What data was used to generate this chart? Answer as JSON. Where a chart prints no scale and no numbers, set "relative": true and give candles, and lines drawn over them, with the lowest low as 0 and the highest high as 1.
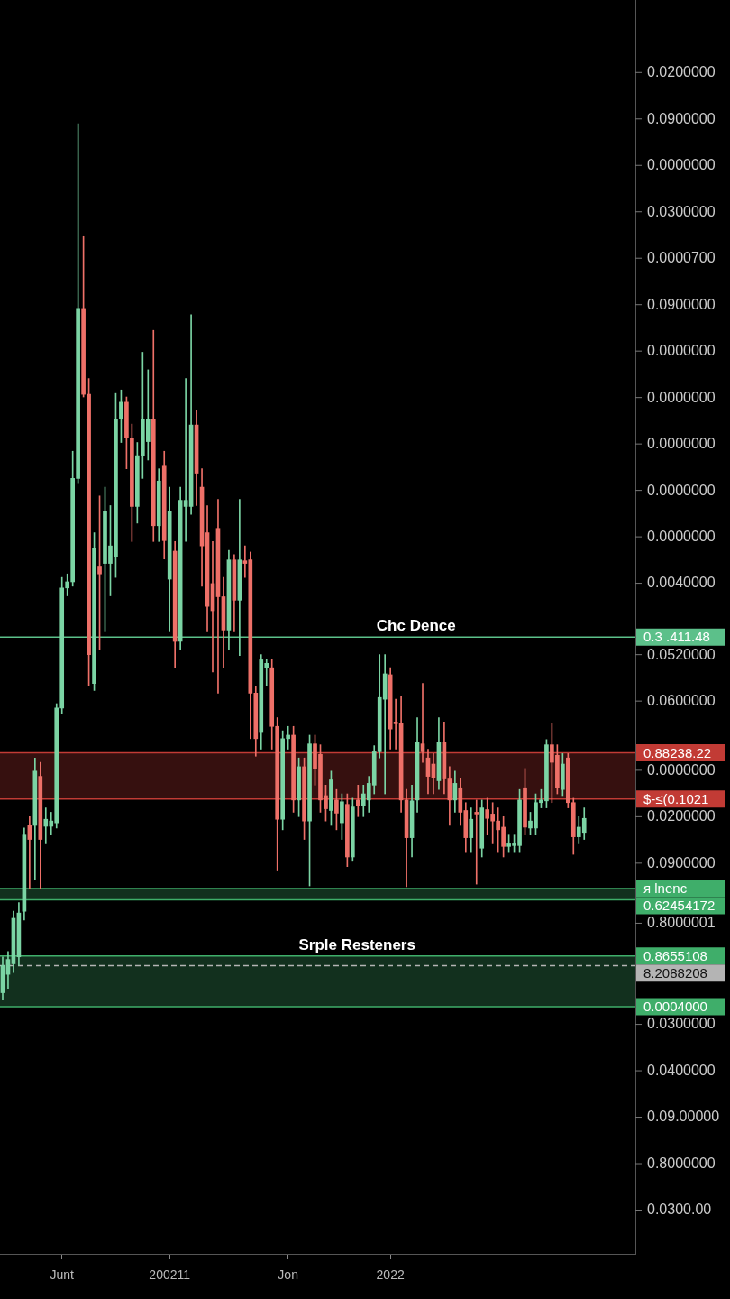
{
  "chart_data": {
    "type": "candlestick",
    "relative": true,
    "categories": [
      null,
      null,
      null,
      null,
      null,
      null,
      null,
      null,
      null,
      null,
      null,
      "Junt",
      null,
      null,
      null,
      null,
      null,
      null,
      null,
      null,
      null,
      null,
      null,
      null,
      null,
      null,
      null,
      null,
      null,
      null,
      null,
      "200211",
      null,
      null,
      null,
      null,
      null,
      null,
      null,
      null,
      null,
      null,
      null,
      null,
      null,
      null,
      null,
      null,
      null,
      null,
      null,
      null,
      null,
      "Jon",
      null,
      null,
      null,
      null,
      null,
      null,
      null,
      null,
      null,
      null,
      null,
      null,
      null,
      null,
      null,
      null,
      null,
      null,
      "2022",
      null,
      null,
      null,
      null,
      null,
      null,
      null,
      null,
      null,
      null,
      null,
      null,
      null,
      null,
      null,
      null,
      null,
      null,
      null,
      null,
      null,
      null,
      null,
      null,
      null,
      null,
      null,
      null,
      null,
      null,
      null,
      null,
      null,
      null,
      null,
      null,
      null,
      null,
      null,
      null,
      null,
      null,
      null,
      null,
      null
    ],
    "ohlc": [
      [
        0.008,
        0.049,
        0,
        0.039
      ],
      [
        0.029,
        0.055,
        0.013,
        0.046
      ],
      [
        0.041,
        0.101,
        0.031,
        0.093
      ],
      [
        0.049,
        0.111,
        0.039,
        0.099
      ],
      [
        0.101,
        0.196,
        0.091,
        0.188
      ],
      [
        0.199,
        0.209,
        0.127,
        0.183
      ],
      [
        0.199,
        0.276,
        0.137,
        0.261
      ],
      [
        0.255,
        0.271,
        0.127,
        0.183
      ],
      [
        0.198,
        0.219,
        0.178,
        0.206
      ],
      [
        0.198,
        0.214,
        0.188,
        0.204
      ],
      [
        0.202,
        0.338,
        0.196,
        0.333
      ],
      [
        0.333,
        0.482,
        0.327,
        0.47
      ],
      [
        0.47,
        0.486,
        0.461,
        0.477
      ],
      [
        0.477,
        0.626,
        0.472,
        0.595
      ],
      [
        0.595,
        1,
        0.59,
        0.789
      ],
      [
        0.789,
        0.871,
        0.688,
        0.691
      ],
      [
        0.691,
        0.709,
        0.358,
        0.394
      ],
      [
        0.361,
        0.533,
        0.353,
        0.515
      ],
      [
        0.495,
        0.575,
        0.4,
        0.486
      ],
      [
        0.498,
        0.585,
        0.42,
        0.557
      ],
      [
        0.498,
        0.564,
        0.461,
        0.518
      ],
      [
        0.506,
        0.692,
        0.482,
        0.663
      ],
      [
        0.663,
        0.696,
        0.636,
        0.682
      ],
      [
        0.682,
        0.688,
        0.606,
        0.641
      ],
      [
        0.641,
        0.657,
        0.523,
        0.563
      ],
      [
        0.563,
        0.636,
        0.544,
        0.621
      ],
      [
        0.621,
        0.739,
        0.595,
        0.663
      ],
      [
        0.637,
        0.719,
        0.616,
        0.663
      ],
      [
        0.663,
        0.764,
        0.523,
        0.541
      ],
      [
        0.541,
        0.606,
        0.523,
        0.592
      ],
      [
        0.609,
        0.626,
        0.503,
        0.524
      ],
      [
        0.48,
        0.585,
        0.42,
        0.557
      ],
      [
        0.512,
        0.523,
        0.379,
        0.409
      ],
      [
        0.409,
        0.585,
        0.4,
        0.57
      ],
      [
        0.563,
        0.709,
        0.523,
        0.57
      ],
      [
        0.563,
        0.782,
        0.554,
        0.656
      ],
      [
        0.656,
        0.673,
        0.564,
        0.601
      ],
      [
        0.585,
        0.606,
        0.472,
        0.518
      ],
      [
        0.533,
        0.564,
        0.42,
        0.449
      ],
      [
        0.475,
        0.523,
        0.374,
        0.444
      ],
      [
        0.538,
        0.571,
        0.35,
        0.46
      ],
      [
        0.46,
        0.482,
        0.379,
        0.422
      ],
      [
        0.422,
        0.513,
        0.4,
        0.502
      ],
      [
        0.502,
        0.508,
        0.42,
        0.456
      ],
      [
        0.456,
        0.571,
        0.393,
        0.502
      ],
      [
        0.501,
        0.518,
        0.482,
        0.498
      ],
      [
        0.502,
        0.511,
        0.298,
        0.35
      ],
      [
        0.35,
        0.358,
        0.278,
        0.298
      ],
      [
        0.305,
        0.394,
        0.286,
        0.388
      ],
      [
        0.379,
        0.389,
        0.358,
        0.384
      ],
      [
        0.379,
        0.389,
        0.286,
        0.312
      ],
      [
        0.312,
        0.322,
        0.148,
        0.206
      ],
      [
        0.206,
        0.307,
        0.194,
        0.298
      ],
      [
        0.298,
        0.312,
        0.286,
        0.302
      ],
      [
        0.302,
        0.312,
        0.214,
        0.228
      ],
      [
        0.228,
        0.276,
        0.209,
        0.266
      ],
      [
        0.266,
        0.276,
        0.183,
        0.204
      ],
      [
        0.204,
        0.302,
        0.13,
        0.292
      ],
      [
        0.292,
        0.302,
        0.245,
        0.264
      ],
      [
        0.28,
        0.291,
        0.214,
        0.228
      ],
      [
        0.233,
        0.245,
        0.204,
        0.218
      ],
      [
        0.216,
        0.261,
        0.199,
        0.251
      ],
      [
        0.228,
        0.24,
        0.194,
        0.213
      ],
      [
        0.202,
        0.235,
        0.183,
        0.226
      ],
      [
        0.223,
        0.235,
        0.152,
        0.163
      ],
      [
        0.163,
        0.23,
        0.158,
        0.22
      ],
      [
        0.228,
        0.245,
        0.209,
        0.222
      ],
      [
        0.222,
        0.245,
        0.209,
        0.235
      ],
      [
        0.228,
        0.255,
        0.214,
        0.247
      ],
      [
        0.245,
        0.29,
        0.235,
        0.283
      ],
      [
        0.283,
        0.394,
        0.276,
        0.345
      ],
      [
        0.343,
        0.394,
        0.235,
        0.372
      ],
      [
        0.371,
        0.379,
        0.286,
        0.309
      ],
      [
        0.317,
        0.343,
        0.286,
        0.315
      ],
      [
        0.315,
        0.346,
        0.214,
        0.228
      ],
      [
        0.228,
        0.24,
        0.129,
        0.185
      ],
      [
        0.185,
        0.245,
        0.163,
        0.227
      ],
      [
        0.228,
        0.322,
        0.214,
        0.294
      ],
      [
        0.292,
        0.361,
        0.271,
        0.283
      ],
      [
        0.276,
        0.286,
        0.235,
        0.255
      ],
      [
        0.269,
        0.281,
        0.235,
        0.253
      ],
      [
        0.25,
        0.322,
        0.24,
        0.294
      ],
      [
        0.294,
        0.317,
        0.235,
        0.252
      ],
      [
        0.252,
        0.266,
        0.199,
        0.228
      ],
      [
        0.228,
        0.261,
        0.214,
        0.247
      ],
      [
        0.242,
        0.253,
        0.199,
        0.214
      ],
      [
        0.216,
        0.225,
        0.168,
        0.185
      ],
      [
        0.185,
        0.219,
        0.168,
        0.206
      ],
      [
        0.214,
        0.228,
        0.132,
        0.212
      ],
      [
        0.173,
        0.228,
        0.163,
        0.219
      ],
      [
        0.217,
        0.23,
        0.188,
        0.207
      ],
      [
        0.212,
        0.225,
        0.178,
        0.204
      ],
      [
        0.204,
        0.219,
        0.168,
        0.194
      ],
      [
        0.197,
        0.209,
        0.163,
        0.175
      ],
      [
        0.175,
        0.188,
        0.168,
        0.178
      ],
      [
        0.176,
        0.188,
        0.168,
        0.178
      ],
      [
        0.176,
        0.24,
        0.168,
        0.228
      ],
      [
        0.242,
        0.264,
        0.188,
        0.197
      ],
      [
        0.196,
        0.214,
        0.188,
        0.204
      ],
      [
        0.196,
        0.235,
        0.188,
        0.225
      ],
      [
        0.225,
        0.24,
        0.219,
        0.228
      ],
      [
        0.227,
        0.297,
        0.219,
        0.291
      ],
      [
        0.291,
        0.315,
        0.225,
        0.271
      ],
      [
        0.279,
        0.291,
        0.235,
        0.242
      ],
      [
        0.24,
        0.281,
        0.233,
        0.269
      ],
      [
        0.276,
        0.281,
        0.219,
        0.225
      ],
      [
        0.225,
        0.23,
        0.166,
        0.186
      ],
      [
        0.186,
        0.209,
        0.178,
        0.197
      ],
      [
        0.191,
        0.219,
        0.183,
        0.207
      ],
      null,
      null,
      null,
      null,
      null,
      null,
      null,
      null,
      null
    ],
    "colors": [
      "#7bd4a4",
      "#7bd4a4",
      "#7bd4a4",
      "#7bd4a4",
      "#7bd4a4",
      "#ee7068",
      "#7bd4a4",
      "#ee7068",
      "#7bd4a4",
      "#7bd4a4",
      "#7bd4a4",
      "#7bd4a4",
      "#7bd4a4",
      "#7bd4a4",
      "#7bd4a4",
      "#ee7068",
      "#ee7068",
      "#7bd4a4",
      "#ee7068",
      "#7bd4a4",
      "#7bd4a4",
      "#7bd4a4",
      "#7bd4a4",
      "#ee7068",
      "#ee7068",
      "#7bd4a4",
      "#7bd4a4",
      "#7bd4a4",
      "#ee7068",
      "#7bd4a4",
      "#ee7068",
      "#7bd4a4",
      "#ee7068",
      "#7bd4a4",
      "#7bd4a4",
      "#7bd4a4",
      "#ee7068",
      "#ee7068",
      "#ee7068",
      "#ee7068",
      "#ee7068",
      "#ee7068",
      "#7bd4a4",
      "#ee7068",
      "#7bd4a4",
      "#ee7068",
      "#ee7068",
      "#ee7068",
      "#7bd4a4",
      "#7bd4a4",
      "#ee7068",
      "#ee7068",
      "#7bd4a4",
      "#7bd4a4",
      "#ee7068",
      "#7bd4a4",
      "#ee7068",
      "#7bd4a4",
      "#ee7068",
      "#ee7068",
      "#ee7068",
      "#7bd4a4",
      "#ee7068",
      "#7bd4a4",
      "#ee7068",
      "#7bd4a4",
      "#ee7068",
      "#7bd4a4",
      "#7bd4a4",
      "#7bd4a4",
      "#7bd4a4",
      "#7bd4a4",
      "#ee7068",
      "#ee7068",
      "#ee7068",
      "#ee7068",
      "#7bd4a4",
      "#7bd4a4",
      "#ee7068",
      "#ee7068",
      "#ee7068",
      "#7bd4a4",
      "#ee7068",
      "#ee7068",
      "#7bd4a4",
      "#ee7068",
      "#ee7068",
      "#7bd4a4",
      "#ee7068",
      "#7bd4a4",
      "#ee7068",
      "#ee7068",
      "#ee7068",
      "#ee7068",
      "#7bd4a4",
      "#7bd4a4",
      "#7bd4a4",
      "#ee7068",
      "#7bd4a4",
      "#7bd4a4",
      "#7bd4a4",
      "#7bd4a4",
      "#ee7068",
      "#ee7068",
      "#7bd4a4",
      "#ee7068",
      "#ee7068",
      "#7bd4a4",
      "#7bd4a4",
      null,
      null,
      null,
      null,
      null,
      null,
      null,
      null,
      null
    ],
    "bands": [
      {
        "axis": "y",
        "from": 0.229,
        "to": 0.282,
        "color": "#c23b35"
      },
      {
        "axis": "y",
        "from": 0.114,
        "to": 0.127,
        "color": "#3fae6a"
      },
      {
        "axis": "y",
        "from": -0.008,
        "to": 0.05,
        "label": "Srple Resteners",
        "color": "#3fae6a"
      }
    ],
    "ref_lines": [
      {
        "axis": "y",
        "value": 0.414,
        "color": "#5cc08a"
      },
      {
        "axis": "y",
        "value": 0.282,
        "color": "#c23b35"
      },
      {
        "axis": "y",
        "value": 0.229,
        "color": "#c23b35"
      },
      {
        "axis": "y",
        "value": 0.127,
        "color": "#3fae6a"
      },
      {
        "axis": "y",
        "value": 0.114,
        "color": "#3fae6a"
      },
      {
        "axis": "y",
        "value": 0.05,
        "color": "#3fae6a"
      },
      {
        "axis": "y",
        "value": 0.039,
        "color": "#b4b4b4",
        "line_style": "dashed"
      },
      {
        "axis": "y",
        "value": -0.008,
        "color": "#3fae6a"
      }
    ],
    "annotations": [
      {
        "text": "Chc Dence",
        "y": 0.414
      },
      "0.3 .411.48",
      "0.88238.22",
      "$-≤(0.1021",
      "ᴙ lnenc",
      "0.62454172",
      "0.8655108",
      "8.2088208",
      "0.0004000",
      "0.0200000",
      "0.0900000",
      "0.0000000",
      "0.0300000",
      "0.0000700",
      "0.0900000",
      "0.0000000",
      "0.0000000",
      "0.0000000",
      "0.0000000",
      "0.0000000",
      "0.0040000",
      "0.0520000",
      "0.0600000",
      "0.0000000",
      "0.0200000",
      "0.0900000",
      "0.8000001",
      "0.0300000",
      "0.0400000",
      "0.09.00000",
      "0.8000000",
      "0.0300.00"
    ]
  }
}
